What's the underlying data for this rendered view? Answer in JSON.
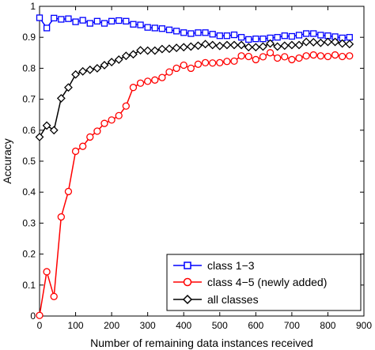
{
  "chart_data": {
    "type": "line",
    "title": "",
    "xlabel": "Number of remaining data instances received",
    "ylabel": "Accuracy",
    "xlim": [
      0,
      900
    ],
    "ylim": [
      0,
      1
    ],
    "xticks": [
      0,
      100,
      200,
      300,
      400,
      500,
      600,
      700,
      800,
      900
    ],
    "yticks": [
      0,
      0.1,
      0.2,
      0.3,
      0.4,
      0.5,
      0.6,
      0.7,
      0.8,
      0.9,
      1
    ],
    "grid": false,
    "legend_position": "bottom-right",
    "x": [
      0,
      20,
      40,
      60,
      80,
      100,
      120,
      140,
      160,
      180,
      200,
      220,
      240,
      260,
      280,
      300,
      320,
      340,
      360,
      380,
      400,
      420,
      440,
      460,
      480,
      500,
      520,
      540,
      560,
      580,
      600,
      620,
      640,
      660,
      680,
      700,
      720,
      740,
      760,
      780,
      800,
      820,
      840,
      860
    ],
    "series": [
      {
        "name": "class 1−3",
        "color": "#0000ff",
        "marker": "square",
        "values": [
          0.963,
          0.93,
          0.962,
          0.958,
          0.96,
          0.95,
          0.955,
          0.945,
          0.952,
          0.945,
          0.952,
          0.954,
          0.952,
          0.942,
          0.94,
          0.932,
          0.93,
          0.928,
          0.924,
          0.92,
          0.915,
          0.912,
          0.915,
          0.915,
          0.91,
          0.905,
          0.905,
          0.908,
          0.9,
          0.893,
          0.895,
          0.895,
          0.898,
          0.9,
          0.905,
          0.903,
          0.907,
          0.912,
          0.912,
          0.907,
          0.905,
          0.902,
          0.898,
          0.9
        ]
      },
      {
        "name": "class 4−5 (newly added)",
        "color": "#ff0000",
        "marker": "circle",
        "values": [
          0.002,
          0.143,
          0.063,
          0.32,
          0.402,
          0.532,
          0.548,
          0.578,
          0.597,
          0.622,
          0.633,
          0.647,
          0.678,
          0.738,
          0.752,
          0.758,
          0.762,
          0.77,
          0.788,
          0.8,
          0.81,
          0.8,
          0.813,
          0.818,
          0.817,
          0.818,
          0.822,
          0.823,
          0.84,
          0.838,
          0.828,
          0.837,
          0.85,
          0.833,
          0.837,
          0.828,
          0.833,
          0.84,
          0.843,
          0.84,
          0.838,
          0.843,
          0.838,
          0.84
        ]
      },
      {
        "name": "all classes",
        "color": "#000000",
        "marker": "diamond",
        "values": [
          0.578,
          0.615,
          0.6,
          0.703,
          0.738,
          0.78,
          0.79,
          0.795,
          0.8,
          0.81,
          0.82,
          0.828,
          0.84,
          0.845,
          0.858,
          0.857,
          0.857,
          0.862,
          0.863,
          0.866,
          0.868,
          0.87,
          0.873,
          0.878,
          0.875,
          0.872,
          0.875,
          0.875,
          0.875,
          0.868,
          0.868,
          0.87,
          0.88,
          0.87,
          0.873,
          0.875,
          0.875,
          0.885,
          0.884,
          0.882,
          0.885,
          0.885,
          0.88,
          0.878
        ]
      }
    ]
  }
}
